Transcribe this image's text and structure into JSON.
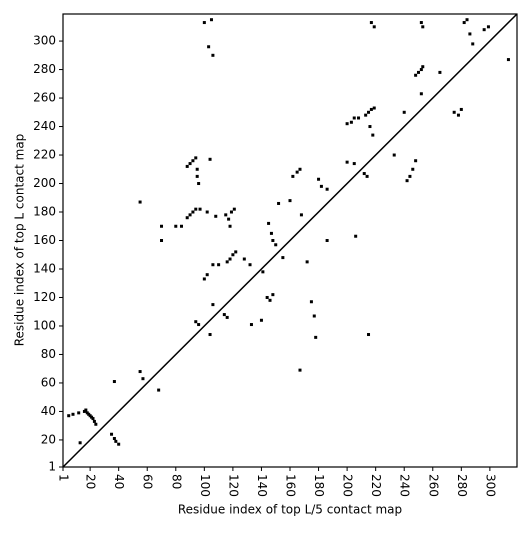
{
  "chart_data": {
    "type": "scatter",
    "xlabel": "Residue index of top L/5 contact map",
    "ylabel": "Residue index of top L contact map",
    "color": "#000000",
    "xlim": [
      1,
      319
    ],
    "ylim": [
      1,
      319
    ],
    "xticks": [
      1,
      20,
      40,
      60,
      80,
      100,
      120,
      140,
      160,
      180,
      200,
      220,
      240,
      260,
      280,
      300
    ],
    "yticks": [
      1,
      20,
      40,
      60,
      80,
      100,
      120,
      140,
      160,
      180,
      200,
      220,
      240,
      260,
      280,
      300
    ],
    "x": [
      5,
      8,
      12,
      16,
      17,
      18,
      19,
      20,
      21,
      22,
      23,
      24,
      13,
      35,
      37,
      38,
      40,
      37,
      55,
      57,
      68,
      70,
      70,
      55,
      80,
      84,
      88,
      90,
      92,
      94,
      95,
      95,
      96,
      88,
      90,
      92,
      94,
      97,
      102,
      104,
      108,
      100,
      102,
      106,
      110,
      104,
      106,
      94,
      96,
      100,
      103,
      106,
      105,
      115,
      117,
      119,
      121,
      118,
      116,
      118,
      120,
      122,
      114,
      116,
      128,
      132,
      133,
      140,
      141,
      144,
      146,
      148,
      145,
      147,
      148,
      150,
      152,
      155,
      160,
      162,
      165,
      167,
      168,
      167,
      172,
      175,
      177,
      178,
      180,
      182,
      186,
      186,
      200,
      203,
      205,
      208,
      200,
      205,
      206,
      212,
      214,
      213,
      215,
      217,
      219,
      216,
      218,
      215,
      217,
      219,
      233,
      240,
      242,
      244,
      246,
      248,
      248,
      250,
      252,
      253,
      252,
      253,
      252,
      265,
      275,
      278,
      280,
      282,
      284,
      286,
      288,
      296,
      299,
      313
    ],
    "values": [
      37,
      38,
      39,
      40,
      41,
      39,
      38,
      37,
      36,
      35,
      33,
      31,
      18,
      24,
      21,
      19,
      17,
      61,
      68,
      63,
      55,
      160,
      170,
      187,
      170,
      170,
      212,
      214,
      216,
      218,
      210,
      205,
      200,
      176,
      178,
      180,
      182,
      182,
      180,
      217,
      177,
      133,
      136,
      143,
      143,
      94,
      115,
      103,
      101,
      313,
      296,
      290,
      315,
      178,
      175,
      180,
      182,
      170,
      145,
      147,
      150,
      152,
      108,
      106,
      147,
      143,
      101,
      104,
      138,
      120,
      118,
      122,
      172,
      165,
      160,
      157,
      186,
      148,
      188,
      205,
      208,
      210,
      178,
      69,
      145,
      117,
      107,
      92,
      203,
      198,
      196,
      160,
      242,
      243,
      246,
      246,
      215,
      214,
      163,
      207,
      205,
      248,
      250,
      252,
      253,
      240,
      234,
      94,
      313,
      310,
      220,
      250,
      202,
      205,
      210,
      216,
      276,
      278,
      280,
      282,
      263,
      310,
      313,
      278,
      250,
      248,
      252,
      313,
      315,
      305,
      298,
      308,
      310,
      287
    ]
  }
}
